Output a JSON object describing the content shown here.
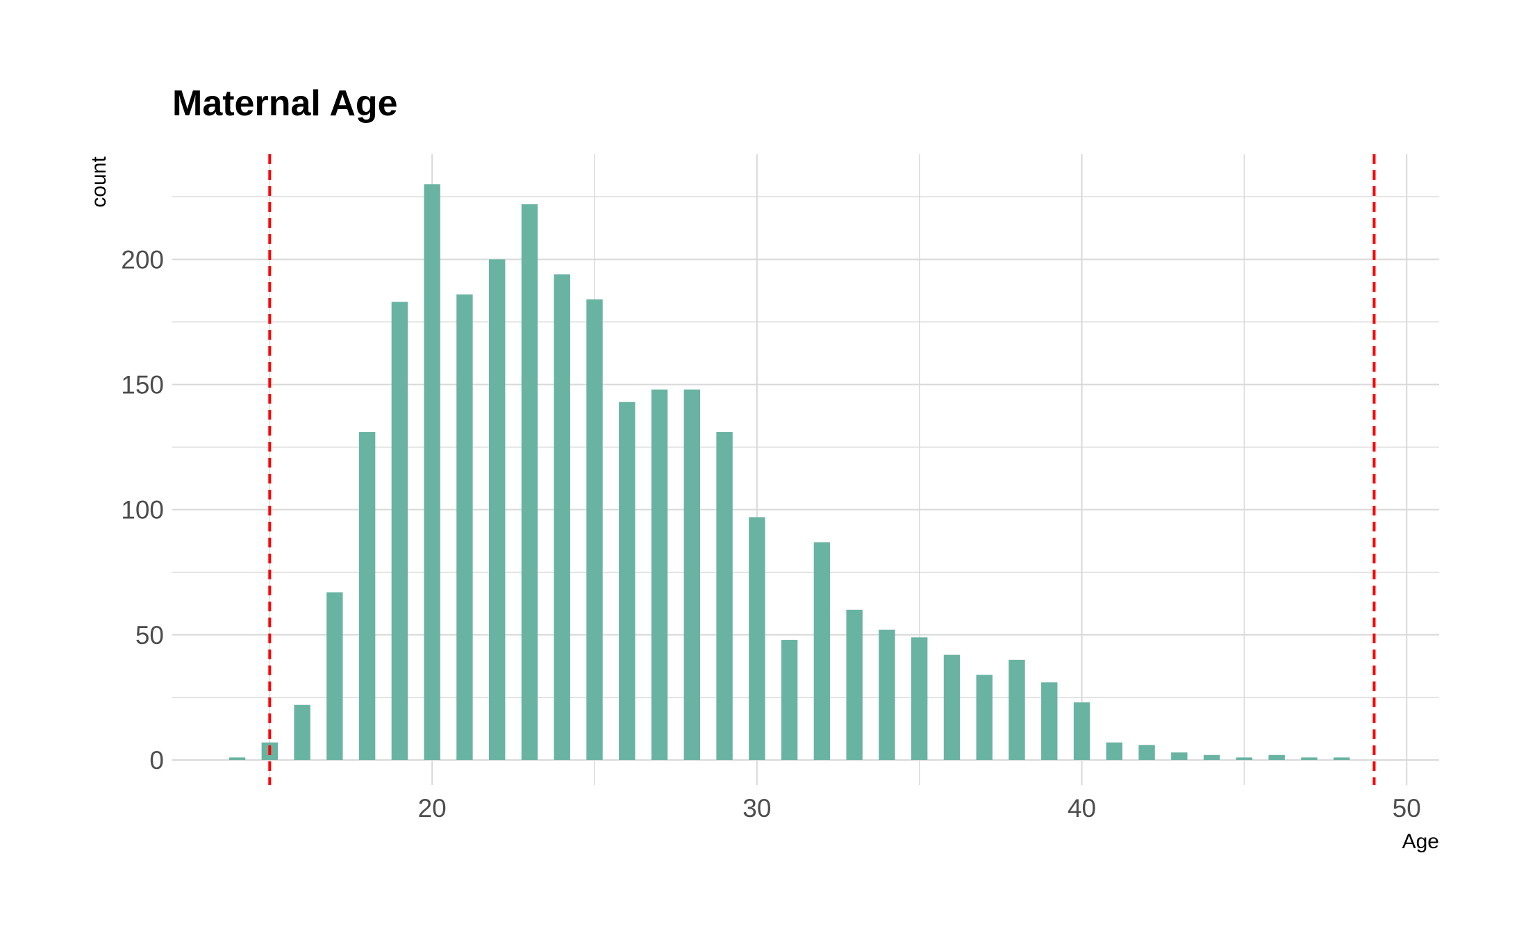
{
  "chart_data": {
    "type": "bar",
    "title": "Maternal Age",
    "xlabel": "Age",
    "ylabel": "count",
    "x": [
      14,
      15,
      16,
      17,
      18,
      19,
      20,
      21,
      22,
      23,
      24,
      25,
      26,
      27,
      28,
      29,
      30,
      31,
      32,
      33,
      34,
      35,
      36,
      37,
      38,
      39,
      40,
      41,
      42,
      43,
      44,
      45,
      46,
      47,
      48
    ],
    "values": [
      1,
      7,
      22,
      67,
      131,
      183,
      230,
      186,
      200,
      222,
      194,
      184,
      143,
      148,
      148,
      131,
      97,
      48,
      87,
      60,
      52,
      49,
      42,
      34,
      40,
      31,
      23,
      7,
      6,
      3,
      2,
      1,
      2,
      1,
      1
    ],
    "xlim": [
      12,
      51
    ],
    "ylim": [
      -10,
      242
    ],
    "x_ticks": [
      20,
      30,
      40,
      50
    ],
    "y_ticks": [
      0,
      50,
      100,
      150,
      200
    ],
    "x_minor_ticks": [
      15,
      25,
      35,
      45
    ],
    "y_minor_ticks": [
      25,
      75,
      125,
      175,
      225
    ],
    "bar_width": 0.5,
    "reference_lines": [
      {
        "axis": "x",
        "value": 15,
        "style": "dashed",
        "color": "#ff0000"
      },
      {
        "axis": "x",
        "value": 49,
        "style": "dashed",
        "color": "#ff0000"
      }
    ],
    "bar_color": "#69b3a2",
    "grid": true,
    "grid_color": "#d9d9d9"
  }
}
